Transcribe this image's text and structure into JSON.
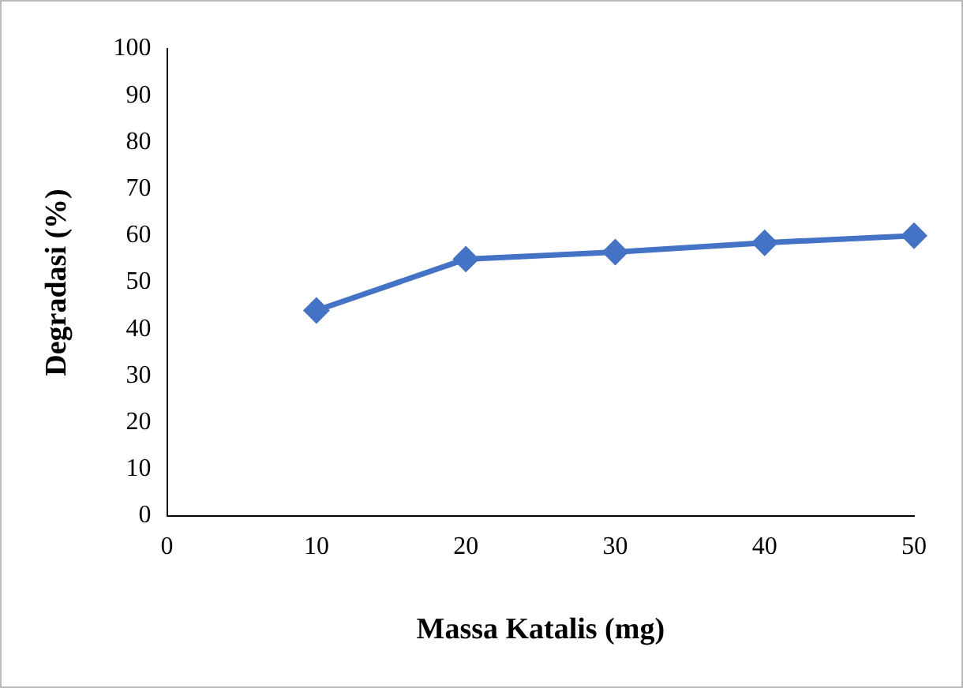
{
  "chart_data": {
    "type": "line",
    "xlabel": "Massa Katalis (mg)",
    "ylabel": "Degradasi (%)",
    "x": [
      10,
      20,
      30,
      40,
      50
    ],
    "series": [
      {
        "color": "#4472c4",
        "values": [
          44,
          55,
          56.5,
          58.5,
          60
        ]
      }
    ],
    "xlim": [
      0,
      50
    ],
    "xticks": [
      0,
      10,
      20,
      30,
      40,
      50
    ],
    "ylim": [
      0,
      100
    ],
    "yticks": [
      0,
      10,
      20,
      30,
      40,
      50,
      60,
      70,
      80,
      90,
      100
    ],
    "grid": false,
    "legend": false,
    "marker": "diamond",
    "line_style": "solid"
  }
}
